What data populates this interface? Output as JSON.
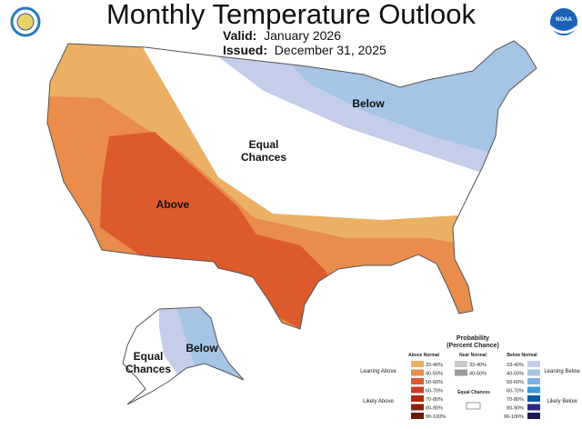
{
  "header": {
    "title": "Monthly Temperature Outlook",
    "valid_label": "Valid:",
    "valid_value": "January 2026",
    "issued_label": "Issued:",
    "issued_value": "December 31, 2025",
    "logo_left": "U.S. Department of Commerce seal",
    "logo_right": "NOAA"
  },
  "map_labels": {
    "conus_below": "Below",
    "conus_equal_1": "Equal",
    "conus_equal_2": "Chances",
    "conus_above": "Above",
    "ak_equal_1": "Equal",
    "ak_equal_2": "Chances",
    "ak_below": "Below"
  },
  "colors": {
    "lean_above": "#ebb064",
    "above_40_50": "#e98c4c",
    "above_50_60": "#dd5a2c",
    "lean_below": "#c4cdea",
    "below_40_50": "#a6c4e4",
    "equal": "#ffffff"
  },
  "legend": {
    "title": "Probability",
    "subtitle": "(Percent Chance)",
    "above_header": "Above Normal",
    "near_header": "Near Normal",
    "below_header": "Below Normal",
    "leaning_above": "Leaning Above",
    "likely_above": "Likely Above",
    "leaning_below": "Leaning Below",
    "likely_below": "Likely Below",
    "equal_chances": "Equal Chances",
    "above": [
      {
        "range": "33-40%",
        "color": "#ebb064"
      },
      {
        "range": "40-50%",
        "color": "#e98c4c"
      },
      {
        "range": "50-60%",
        "color": "#dd5a2c"
      },
      {
        "range": "60-70%",
        "color": "#cc3e1e"
      },
      {
        "range": "70-80%",
        "color": "#b02a12"
      },
      {
        "range": "80-90%",
        "color": "#8c200c"
      },
      {
        "range": "90-100%",
        "color": "#6a1a08"
      }
    ],
    "near": [
      {
        "range": "33-40%",
        "color": "#c8c8c8"
      },
      {
        "range": "40-50%",
        "color": "#9a9a9a"
      }
    ],
    "below": [
      {
        "range": "33-40%",
        "color": "#c4cdea"
      },
      {
        "range": "40-50%",
        "color": "#a6c4e4"
      },
      {
        "range": "50-60%",
        "color": "#7fb2e0"
      },
      {
        "range": "60-70%",
        "color": "#3e9ad8"
      },
      {
        "range": "70-80%",
        "color": "#0e5aa6"
      },
      {
        "range": "80-90%",
        "color": "#2c2a80"
      },
      {
        "range": "90-100%",
        "color": "#1e1a50"
      }
    ]
  }
}
